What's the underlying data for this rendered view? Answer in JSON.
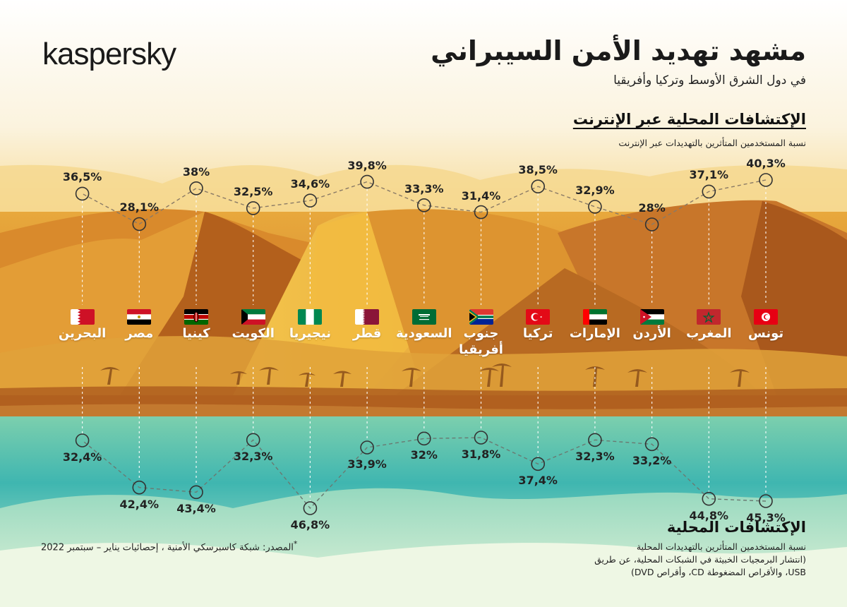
{
  "brand": "kaspersky",
  "title": "مشهد تهديد الأمن السيبراني",
  "subtitle": "في دول الشرق الأوسط وتركيا وأفريقيا",
  "online_section": {
    "title": "الإكتشافات المحلية عبر الإنترنت",
    "description": "نسبة المستخدمين المتأثرين بالتهديدات عبر الإنترنت"
  },
  "local_section": {
    "title": "الإكتشافات المحلية",
    "description_line1": "نسبة المستخدمين المتأثرين بالتهديدات المحلية",
    "description_line2": "(انتشار البرمجيات الخبيثة في الشبكات المحلية، عن طريق",
    "description_line3": "USB، والأقراص المضغوطة CD، وأقراص DVD)"
  },
  "source_note": "المصدر: شبكة كاسبرسكي الأمنية ، إحصائيات يناير – سبتمبر 2022",
  "source_marker": "*",
  "colors": {
    "sky_top": "#ffffff",
    "sand_light": "#f3c24a",
    "sand_mid": "#e4a23a",
    "sand_dark": "#b8661e",
    "water_teal": "#4fbfb4",
    "water_light": "#bfe6c8",
    "line": "#7a6a55"
  },
  "chart_data": {
    "type": "line",
    "categories": [
      "تونس",
      "المغرب",
      "الأردن",
      "الإمارات",
      "تركيا",
      "جنوب أفريقيا",
      "السعودية",
      "قطر",
      "نيجيريا",
      "الكويت",
      "كينيا",
      "مصر",
      "البحرين"
    ],
    "category_lines": [
      [
        "تونس"
      ],
      [
        "المغرب"
      ],
      [
        "الأردن"
      ],
      [
        "الإمارات"
      ],
      [
        "تركيا"
      ],
      [
        "جنوب",
        "أفريقيا"
      ],
      [
        "السعودية"
      ],
      [
        "قطر"
      ],
      [
        "نيجيريا"
      ],
      [
        "الكويت"
      ],
      [
        "كينيا"
      ],
      [
        "مصر"
      ],
      [
        "البحرين"
      ]
    ],
    "flags": [
      "tunisia-flag",
      "morocco-flag",
      "jordan-flag",
      "uae-flag",
      "turkey-flag",
      "south-africa-flag",
      "saudi-flag",
      "qatar-flag",
      "nigeria-flag",
      "kuwait-flag",
      "kenya-flag",
      "egypt-flag",
      "bahrain-flag"
    ],
    "series": [
      {
        "name": "الإكتشافات المحلية عبر الإنترنت",
        "values": [
          40.3,
          37.1,
          28.0,
          32.9,
          38.5,
          31.4,
          33.3,
          39.8,
          34.6,
          32.5,
          38.0,
          28.1,
          36.5
        ],
        "labels": [
          "40,3%",
          "37,1%",
          "28%",
          "32,9%",
          "38,5%",
          "31,4%",
          "33,3%",
          "39,8%",
          "34,6%",
          "32,5%",
          "38%",
          "28,1%",
          "36,5%"
        ]
      },
      {
        "name": "الإكتشافات المحلية",
        "values": [
          45.3,
          44.8,
          33.2,
          32.3,
          37.4,
          31.8,
          32.0,
          33.9,
          46.8,
          32.3,
          43.4,
          42.4,
          32.4
        ],
        "labels": [
          "45,3%",
          "44,8%",
          "33,2%",
          "32,3%",
          "37,4%",
          "31,8%",
          "32%",
          "33,9%",
          "46,8%",
          "32,3%",
          "43,4%",
          "42,4%",
          "32,4%"
        ]
      }
    ],
    "legend": "none",
    "grid": false
  }
}
